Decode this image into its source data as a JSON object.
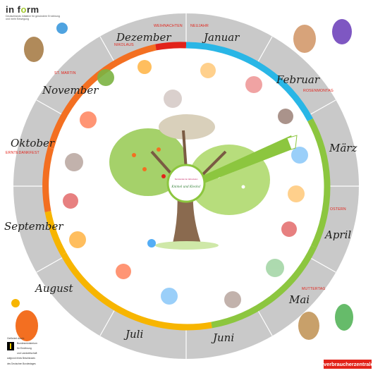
{
  "brand": {
    "logo_prefix": "in f",
    "logo_accent": "o",
    "logo_suffix": "rm",
    "logo_sub1": "Deutschlands Initiative für gesündere Ernährung",
    "logo_sub2": "und mehr Bewegung",
    "footer_badge": "verbraucherzentrale",
    "ministry_head": "Gefördert durch:",
    "ministry_name1": "Bundesministerium",
    "ministry_name2": "für Ernährung",
    "ministry_name3": "und Landwirtschaft",
    "ministry_foot1": "aufgrund eines Beschlusses",
    "ministry_foot2": "des Deutschen Bundestages",
    "center_title": "Knimel und Klecks!",
    "center_sub": "Sternstunden der Jahreszeiten"
  },
  "months": [
    {
      "key": "januar",
      "label": "Januar"
    },
    {
      "key": "februar",
      "label": "Februar"
    },
    {
      "key": "maerz",
      "label": "März"
    },
    {
      "key": "april",
      "label": "April"
    },
    {
      "key": "mai",
      "label": "Mai"
    },
    {
      "key": "juni",
      "label": "Juni"
    },
    {
      "key": "juli",
      "label": "Juli"
    },
    {
      "key": "august",
      "label": "August"
    },
    {
      "key": "september",
      "label": "September"
    },
    {
      "key": "oktober",
      "label": "Oktober"
    },
    {
      "key": "november",
      "label": "November"
    },
    {
      "key": "dezember",
      "label": "Dezember"
    }
  ],
  "holidays": {
    "weihnachten": "WEIHNACHTEN",
    "neujahr": "NEUJAHR",
    "nikolaus": "NIKOLAUS",
    "st_martin": "ST. MARTIN",
    "rosenmontag": "ROSENMONTAG",
    "erntedankfest": "ERNTEDANKFEST",
    "ostern": "OSTERN",
    "muttertag": "MUTTERTAG"
  },
  "colors": {
    "outer_ring": "#c9c9c9",
    "blue": "#29b6e6",
    "green": "#8cc63f",
    "yellow": "#f7b500",
    "orange": "#f36f21",
    "red": "#e2231a",
    "hand": "#8cc63f",
    "tree_trunk": "#8a6a4f"
  },
  "hand_position_month": "März"
}
